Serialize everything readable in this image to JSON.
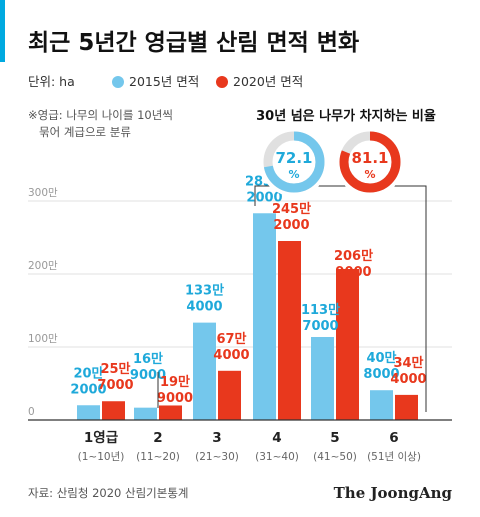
{
  "header": {
    "title": "최근 5년간 영급별 산림 면적 변화",
    "unit_label": "단위: ha",
    "note_line1": "※영급: 나무의 나이를 10년씩",
    "note_line2": "묶어 계급으로 분류"
  },
  "colors": {
    "accent": "#00A9E0",
    "series_2015": "#74C7EC",
    "series_2020": "#E8381D",
    "label_2015": "#1FA9DA",
    "label_2020": "#E8381D",
    "ring_track": "#E0E0E0",
    "grid": "#E1E1E1",
    "text": "#222222",
    "muted": "#666666"
  },
  "chart_data": {
    "type": "bar",
    "title": "최근 5년간 영급별 산림 면적 변화",
    "unit": "ha",
    "ylim": [
      0,
      3000000
    ],
    "yticks": [
      {
        "value": 0,
        "label": "0"
      },
      {
        "value": 1000000,
        "label": "100만"
      },
      {
        "value": 2000000,
        "label": "200만"
      },
      {
        "value": 3000000,
        "label": "300만"
      }
    ],
    "grid": true,
    "legend_position": "top-left",
    "categories": [
      {
        "label": "1영급",
        "sub": "(1~10년)"
      },
      {
        "label": "2",
        "sub": "(11~20)"
      },
      {
        "label": "3",
        "sub": "(21~30)"
      },
      {
        "label": "4",
        "sub": "(31~40)"
      },
      {
        "label": "5",
        "sub": "(41~50)"
      },
      {
        "label": "6",
        "sub": "(51년 이상)"
      }
    ],
    "series": [
      {
        "name": "2015년 면적",
        "values": [
          202000,
          169000,
          1334000,
          2832000,
          1137000,
          408000
        ],
        "labels": [
          [
            "20만",
            "2000"
          ],
          [
            "16만",
            "9000"
          ],
          [
            "133만",
            "4000"
          ],
          [
            "283만",
            "2000"
          ],
          [
            "113만",
            "7000"
          ],
          [
            "40만",
            "8000"
          ]
        ]
      },
      {
        "name": "2020년 면적",
        "values": [
          257000,
          199000,
          674000,
          2452000,
          2069000,
          344000
        ],
        "labels": [
          [
            "25만",
            "7000"
          ],
          [
            "19만",
            "9000"
          ],
          [
            "67만",
            "4000"
          ],
          [
            "245만",
            "2000"
          ],
          [
            "206만",
            "9000"
          ],
          [
            "34만",
            "4000"
          ]
        ]
      }
    ],
    "callout": {
      "title": "30년 넘은 나무가 차지하는 비율",
      "items": [
        {
          "series": "2015년 면적",
          "value": 72.1,
          "label": "72.1",
          "unit": "%"
        },
        {
          "series": "2020년 면적",
          "value": 81.1,
          "label": "81.1",
          "unit": "%"
        }
      ]
    }
  },
  "footer": {
    "source": "자료: 산림청 2020 산림기본통계",
    "brand": "The JoongAng"
  }
}
